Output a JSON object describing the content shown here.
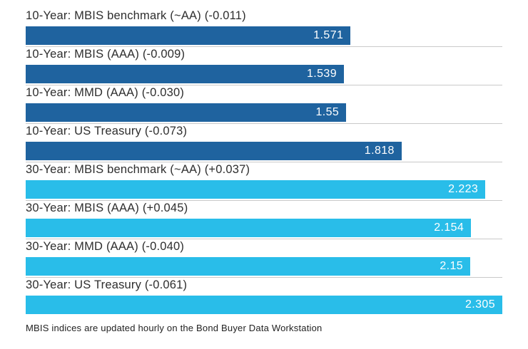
{
  "chart_data": {
    "type": "bar",
    "orientation": "horizontal",
    "title": "",
    "xlabel": "",
    "ylabel": "",
    "xlim": [
      0,
      2.305
    ],
    "grid": false,
    "legend": "none",
    "categories": [
      "10-Year: MBIS benchmark (~AA) (-0.011)",
      "10-Year: MBIS (AAA) (-0.009)",
      "10-Year: MMD (AAA) (-0.030)",
      "10-Year: US Treasury (-0.073)",
      "30-Year: MBIS benchmark (~AA) (+0.037)",
      "30-Year: MBIS (AAA) (+0.045)",
      "30-Year: MMD (AAA) (-0.040)",
      "30-Year: US Treasury (-0.061)"
    ],
    "values": [
      1.571,
      1.539,
      1.55,
      1.818,
      2.223,
      2.154,
      2.15,
      2.305
    ],
    "value_labels": [
      "1.571",
      "1.539",
      "1.55",
      "1.818",
      "2.223",
      "2.154",
      "2.15",
      "2.305"
    ],
    "groups": [
      "ten_year",
      "ten_year",
      "ten_year",
      "ten_year",
      "thirty_year",
      "thirty_year",
      "thirty_year",
      "thirty_year"
    ],
    "colors": {
      "ten_year": "#1f639f",
      "thirty_year": "#29bde9",
      "divider": "#c9c9c9",
      "label_text": "#2e2e2e",
      "value_text": "#ffffff"
    },
    "footnote": "MBIS indices are updated hourly on the Bond Buyer Data Workstation"
  }
}
